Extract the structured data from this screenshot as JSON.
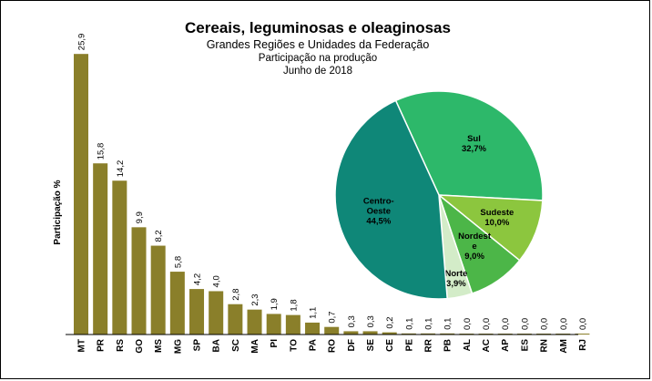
{
  "chart_data": [
    {
      "type": "bar",
      "title": "Cereais, leguminosas e oleaginosas",
      "subtitle_lines": [
        "Grandes Regiões e Unidades da Federação",
        "Participação na produção",
        "Junho de 2018"
      ],
      "ylabel": "Participação %",
      "xlabel": "",
      "categories": [
        "MT",
        "PR",
        "RS",
        "GO",
        "MS",
        "MG",
        "SP",
        "BA",
        "SC",
        "MA",
        "PI",
        "TO",
        "PA",
        "RO",
        "DF",
        "SE",
        "CE",
        "PE",
        "RR",
        "PB",
        "AL",
        "AC",
        "AP",
        "ES",
        "RN",
        "AM",
        "RJ"
      ],
      "values": [
        25.9,
        15.8,
        14.2,
        9.9,
        8.2,
        5.8,
        4.2,
        4.0,
        2.8,
        2.3,
        1.9,
        1.8,
        1.1,
        0.7,
        0.3,
        0.3,
        0.2,
        0.1,
        0.1,
        0.1,
        0.0,
        0.0,
        0.0,
        0.0,
        0.0,
        0.0,
        0.0
      ],
      "value_labels": [
        "25,9",
        "15,8",
        "14,2",
        "9,9",
        "8,2",
        "5,8",
        "4,2",
        "4,0",
        "2,8",
        "2,3",
        "1,9",
        "1,8",
        "1,1",
        "0,7",
        "0,3",
        "0,3",
        "0,2",
        "0,1",
        "0,1",
        "0,1",
        "0,0",
        "0,0",
        "0,0",
        "0,0",
        "0,0",
        "0,0",
        "0,0"
      ],
      "ylim": [
        0,
        26
      ],
      "bar_color": "#8a7f2a",
      "grid": false
    },
    {
      "type": "pie",
      "slices": [
        {
          "name_lines": [
            "Sul"
          ],
          "value": 32.7,
          "label": "32,7%",
          "color": "#2db86a"
        },
        {
          "name_lines": [
            "Sudeste"
          ],
          "value": 10.0,
          "label": "10,0%",
          "color": "#8cc63e"
        },
        {
          "name_lines": [
            "Nordest",
            "e"
          ],
          "value": 9.0,
          "label": "9,0%",
          "color": "#4cb648"
        },
        {
          "name_lines": [
            "Norte"
          ],
          "value": 3.9,
          "label": "3,9%",
          "color": "#d3ecc8"
        },
        {
          "name_lines": [
            "Centro-",
            "Oeste"
          ],
          "value": 44.5,
          "label": "44,5%",
          "color": "#0f8778"
        }
      ]
    }
  ]
}
